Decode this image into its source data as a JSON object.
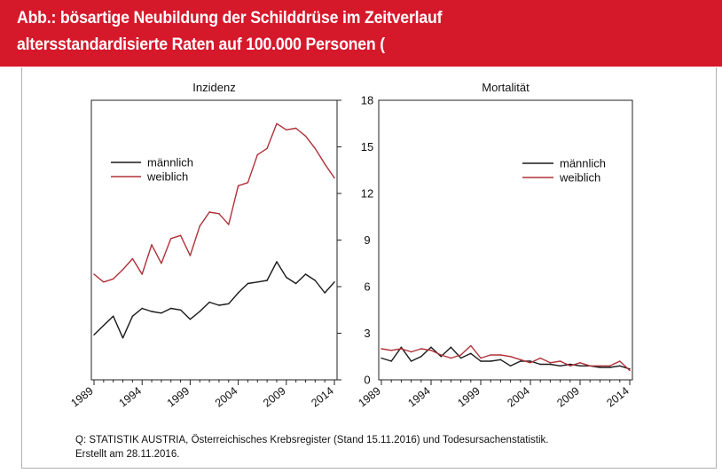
{
  "header": {
    "title_line1": "Abb.: bösartige Neubildung der Schilddrüse im Zeitverlauf",
    "title_line2": "altersstandardisierte Raten auf 100.000 Personen (",
    "background_color": "#d6182b"
  },
  "chart_data": [
    {
      "type": "line",
      "title": "Inzidenz",
      "x": [
        1989,
        1990,
        1991,
        1992,
        1993,
        1994,
        1995,
        1996,
        1997,
        1998,
        1999,
        2000,
        2001,
        2002,
        2003,
        2004,
        2005,
        2006,
        2007,
        2008,
        2009,
        2010,
        2011,
        2012,
        2013,
        2014
      ],
      "x_ticks": [
        1989,
        1994,
        1999,
        2004,
        2009,
        2014
      ],
      "ylim": [
        0,
        18
      ],
      "y_ticks": [
        0,
        3,
        6,
        9,
        12,
        15,
        18
      ],
      "y_axis_side": "right",
      "legend": {
        "position": "upper-left"
      },
      "series": [
        {
          "name": "männlich",
          "color": "#1a1a1a",
          "values": [
            2.9,
            3.5,
            4.1,
            2.7,
            4.1,
            4.6,
            4.4,
            4.3,
            4.6,
            4.5,
            3.9,
            4.4,
            5.0,
            4.8,
            4.9,
            5.6,
            6.2,
            6.3,
            6.4,
            7.6,
            6.6,
            6.2,
            6.8,
            6.4,
            5.6,
            6.3
          ]
        },
        {
          "name": "weiblich",
          "color": "#b03038",
          "values": [
            6.8,
            6.3,
            6.5,
            7.1,
            7.8,
            6.8,
            8.7,
            7.5,
            9.1,
            9.3,
            8.0,
            9.9,
            10.8,
            10.7,
            10.0,
            12.5,
            12.7,
            14.5,
            14.9,
            16.5,
            16.1,
            16.2,
            15.7,
            14.9,
            13.9,
            13.0
          ]
        }
      ]
    },
    {
      "type": "line",
      "title": "Mortalität",
      "x": [
        1989,
        1990,
        1991,
        1992,
        1993,
        1994,
        1995,
        1996,
        1997,
        1998,
        1999,
        2000,
        2001,
        2002,
        2003,
        2004,
        2005,
        2006,
        2007,
        2008,
        2009,
        2010,
        2011,
        2012,
        2013,
        2014
      ],
      "x_ticks": [
        1989,
        1994,
        1999,
        2004,
        2009,
        2014
      ],
      "ylim": [
        0,
        18
      ],
      "y_ticks": [
        0,
        3,
        6,
        9,
        12,
        15,
        18
      ],
      "legend": {
        "position": "upper-right"
      },
      "series": [
        {
          "name": "männlich",
          "color": "#1a1a1a",
          "values": [
            1.4,
            1.2,
            2.1,
            1.2,
            1.5,
            2.1,
            1.5,
            2.1,
            1.4,
            1.7,
            1.2,
            1.2,
            1.3,
            0.9,
            1.2,
            1.2,
            1.0,
            1.0,
            0.9,
            1.0,
            0.9,
            0.9,
            0.8,
            0.8,
            0.9,
            0.7
          ]
        },
        {
          "name": "weiblich",
          "color": "#b03038",
          "values": [
            2.0,
            1.9,
            2.0,
            1.8,
            2.0,
            1.9,
            1.6,
            1.4,
            1.6,
            2.2,
            1.4,
            1.6,
            1.6,
            1.5,
            1.3,
            1.1,
            1.4,
            1.1,
            1.2,
            0.9,
            1.1,
            0.9,
            0.9,
            0.9,
            1.2,
            0.6
          ]
        }
      ]
    }
  ],
  "footer": {
    "source_line1": "Q: STATISTIK AUSTRIA, Österreichisches Krebsregister (Stand 15.11.2016) und Todesursachenstatistik.",
    "source_line2": "Erstellt am 28.11.2016."
  }
}
